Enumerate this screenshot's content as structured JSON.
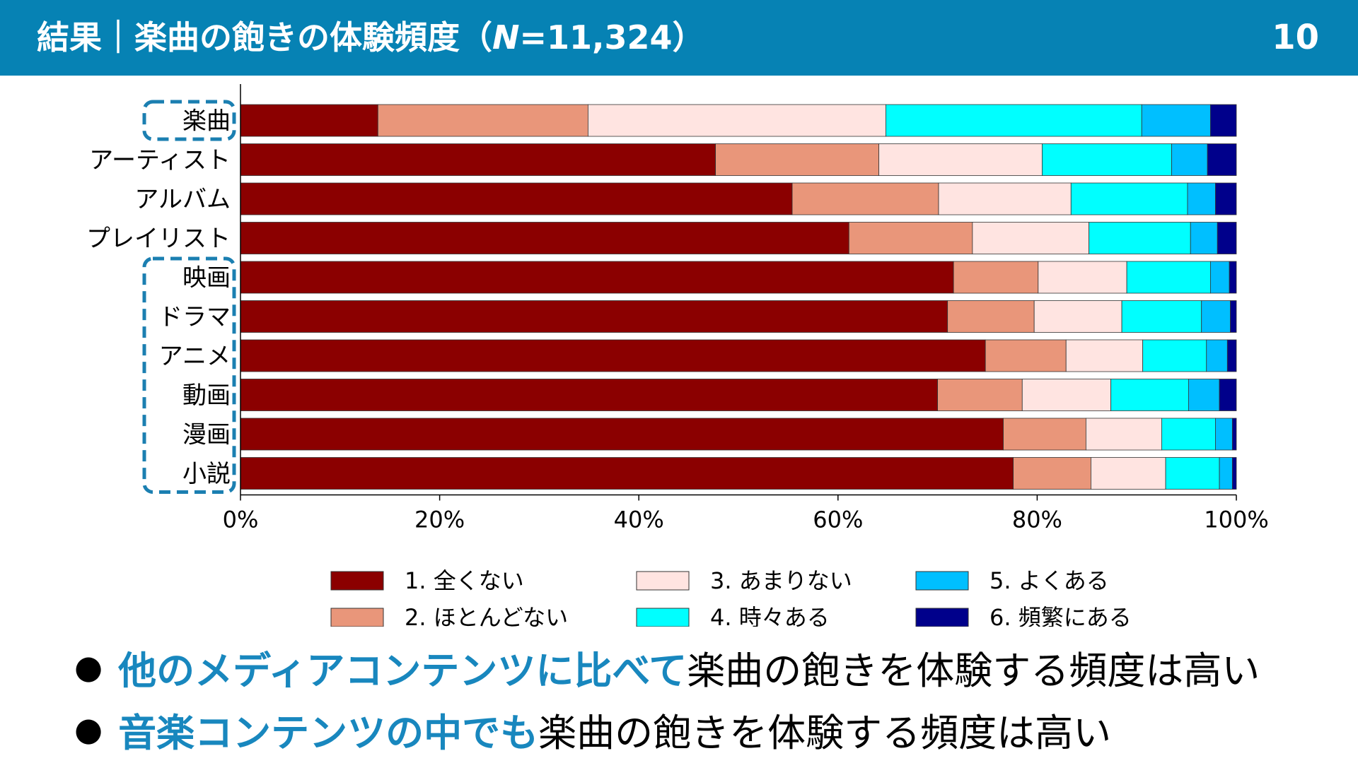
{
  "header": {
    "title_prefix": "結果｜楽曲の飽きの体験頻度（",
    "title_n": "N",
    "title_suffix": "=11,324）",
    "page_number": "10"
  },
  "colors": {
    "header_bg": "#0682B4",
    "highlight_text": "#1887BE",
    "dashed_box": "#1B7FB1"
  },
  "chart_data": {
    "type": "bar",
    "orientation": "horizontal",
    "stacked": "percent",
    "categories": [
      "楽曲",
      "アーティスト",
      "アルバム",
      "プレイリスト",
      "映画",
      "ドラマ",
      "アニメ",
      "動画",
      "漫画",
      "小説"
    ],
    "series": [
      {
        "name": "1. 全くない",
        "color": "#8B0000",
        "values": [
          13.8,
          47.7,
          55.4,
          61.1,
          71.6,
          71.0,
          74.8,
          70.0,
          76.6,
          77.6
        ]
      },
      {
        "name": "2. ほとんどない",
        "color": "#E9967A",
        "values": [
          21.1,
          16.4,
          14.7,
          12.4,
          8.5,
          8.7,
          8.1,
          8.5,
          8.3,
          7.8
        ]
      },
      {
        "name": "3. あまりない",
        "color": "#FFE4E1",
        "values": [
          29.9,
          16.4,
          13.3,
          11.7,
          8.9,
          8.8,
          7.7,
          8.9,
          7.6,
          7.5
        ]
      },
      {
        "name": "4. 時々ある",
        "color": "#00FFFF",
        "values": [
          25.7,
          13.0,
          11.7,
          10.2,
          8.4,
          8.0,
          6.4,
          7.8,
          5.4,
          5.4
        ]
      },
      {
        "name": "5. よくある",
        "color": "#00BFFF",
        "values": [
          6.9,
          3.6,
          2.8,
          2.7,
          1.9,
          2.9,
          2.1,
          3.1,
          1.7,
          1.3
        ]
      },
      {
        "name": "6. 頻繁にある",
        "color": "#00008B",
        "values": [
          2.6,
          2.9,
          2.1,
          1.9,
          0.7,
          0.6,
          0.9,
          1.7,
          0.4,
          0.4
        ]
      }
    ],
    "xlim": [
      0,
      100
    ],
    "x_ticks": [
      "0%",
      "20%",
      "40%",
      "60%",
      "80%",
      "100%"
    ],
    "grid": false,
    "legend_position": "bottom",
    "highlight_groups": [
      [
        "楽曲"
      ],
      [
        "映画",
        "ドラマ",
        "アニメ",
        "動画",
        "漫画",
        "小説"
      ]
    ]
  },
  "bullets": [
    {
      "highlight": "他のメディアコンテンツに比べて",
      "rest": "楽曲の飽きを体験する頻度は高い"
    },
    {
      "highlight": "音楽コンテンツの中でも",
      "rest": "楽曲の飽きを体験する頻度は高い"
    }
  ],
  "bullet_symbol": "●"
}
